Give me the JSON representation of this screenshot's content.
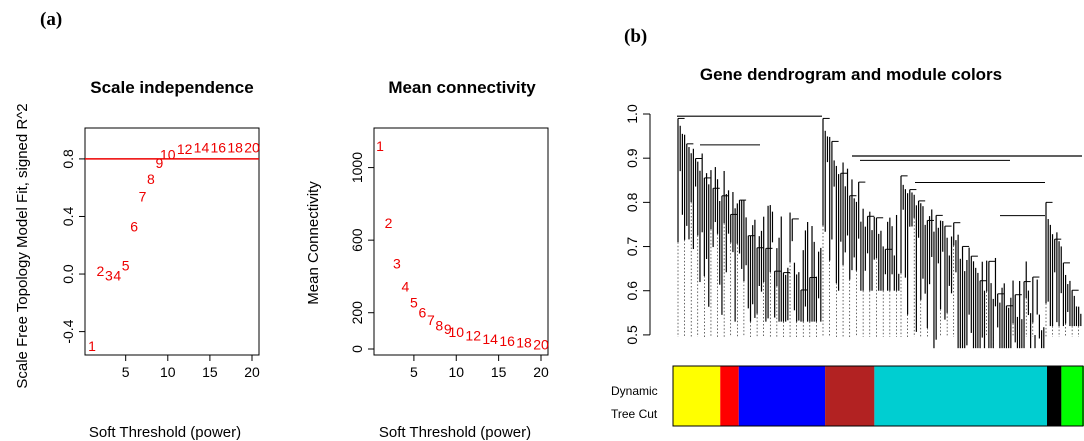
{
  "panels": {
    "a_label": "(a)",
    "b_label": "(b)"
  },
  "chart_data": [
    {
      "type": "scatter",
      "title": "Scale independence",
      "xlabel": "Soft Threshold (power)",
      "ylabel": "Scale Free Topology Model Fit, signed R^2",
      "xlim": [
        1,
        20
      ],
      "ylim": [
        -0.5,
        0.98
      ],
      "xticks": [
        5,
        10,
        15,
        20
      ],
      "yticks": [
        -0.4,
        0.0,
        0.4,
        0.8
      ],
      "ytick_labels": [
        "-0.4",
        "0.0",
        "0.4",
        "0.8"
      ],
      "hline": 0.8,
      "hline_color": "#ee0000",
      "point_color": "#ee0000",
      "points": [
        {
          "label": "1",
          "x": 1,
          "y": -0.5
        },
        {
          "label": "2",
          "x": 2,
          "y": 0.02
        },
        {
          "label": "3",
          "x": 3,
          "y": -0.01
        },
        {
          "label": "4",
          "x": 4,
          "y": -0.01
        },
        {
          "label": "5",
          "x": 5,
          "y": 0.06
        },
        {
          "label": "6",
          "x": 6,
          "y": 0.33
        },
        {
          "label": "7",
          "x": 7,
          "y": 0.54
        },
        {
          "label": "8",
          "x": 8,
          "y": 0.66
        },
        {
          "label": "9",
          "x": 9,
          "y": 0.77
        },
        {
          "label": "10",
          "x": 10,
          "y": 0.83
        },
        {
          "label": "12",
          "x": 12,
          "y": 0.87
        },
        {
          "label": "14",
          "x": 14,
          "y": 0.88
        },
        {
          "label": "16",
          "x": 16,
          "y": 0.88
        },
        {
          "label": "18",
          "x": 18,
          "y": 0.88
        },
        {
          "label": "20",
          "x": 20,
          "y": 0.88
        }
      ]
    },
    {
      "type": "scatter",
      "title": "Mean connectivity",
      "xlabel": "Soft Threshold (power)",
      "ylabel": "Mean Connectivity",
      "xlim": [
        1,
        20
      ],
      "ylim": [
        0,
        1130
      ],
      "xticks": [
        5,
        10,
        15,
        20
      ],
      "yticks": [
        0,
        200,
        600,
        1000
      ],
      "ytick_labels": [
        "0",
        "200",
        "600",
        "1000"
      ],
      "point_color": "#ee0000",
      "points": [
        {
          "label": "1",
          "x": 1,
          "y": 1120
        },
        {
          "label": "2",
          "x": 2,
          "y": 695
        },
        {
          "label": "3",
          "x": 3,
          "y": 470
        },
        {
          "label": "4",
          "x": 4,
          "y": 345
        },
        {
          "label": "5",
          "x": 5,
          "y": 255
        },
        {
          "label": "6",
          "x": 6,
          "y": 200
        },
        {
          "label": "7",
          "x": 7,
          "y": 160
        },
        {
          "label": "8",
          "x": 8,
          "y": 130
        },
        {
          "label": "9",
          "x": 9,
          "y": 110
        },
        {
          "label": "10",
          "x": 10,
          "y": 95
        },
        {
          "label": "12",
          "x": 12,
          "y": 75
        },
        {
          "label": "14",
          "x": 14,
          "y": 55
        },
        {
          "label": "16",
          "x": 16,
          "y": 45
        },
        {
          "label": "18",
          "x": 18,
          "y": 35
        },
        {
          "label": "20",
          "x": 20,
          "y": 25
        }
      ]
    },
    {
      "type": "dendrogram",
      "title": "Gene dendrogram and module colors",
      "ylim": [
        0.45,
        1.0
      ],
      "yticks": [
        0.5,
        0.6,
        0.7,
        0.8,
        0.9,
        1.0
      ],
      "ytick_labels": [
        "0.5",
        "0.6",
        "0.7",
        "0.8",
        "0.9",
        "1.0"
      ],
      "color_bar_label_line1": "Dynamic",
      "color_bar_label_line2": "Tree Cut",
      "modules": [
        {
          "color": "#ffff00",
          "fraction": 0.115
        },
        {
          "color": "#ff0000",
          "fraction": 0.045
        },
        {
          "color": "#0000ff",
          "fraction": 0.21
        },
        {
          "color": "#b22222",
          "fraction": 0.12
        },
        {
          "color": "#00ced1",
          "fraction": 0.42
        },
        {
          "color": "#000000",
          "fraction": 0.035
        },
        {
          "color": "#00ff00",
          "fraction": 0.055
        }
      ]
    }
  ]
}
